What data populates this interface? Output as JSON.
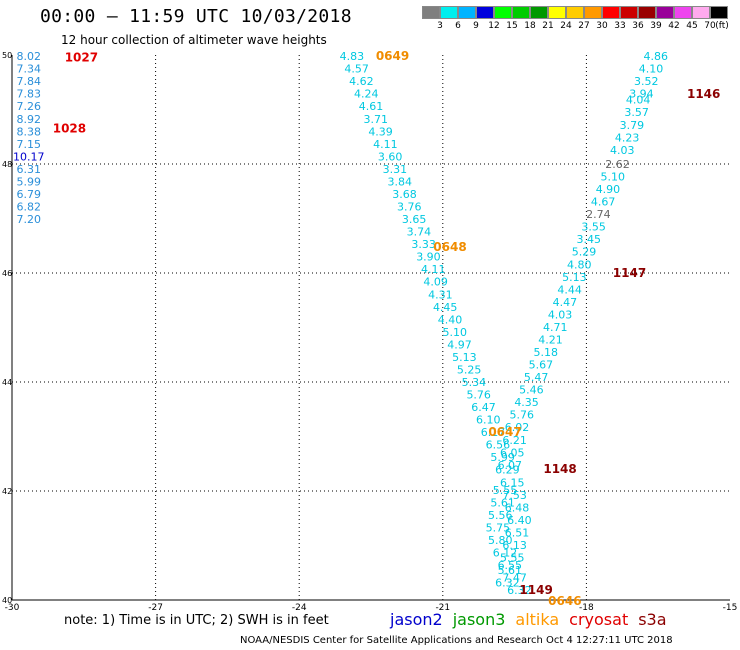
{
  "header": {
    "title": "00:00 – 11:59 UTC 10/03/2018",
    "subtitle": "12 hour collection of altimeter wave heights"
  },
  "colorbar": {
    "unit_label": "(ft)",
    "swatches": [
      {
        "color": "#7f7f7f",
        "label": "3"
      },
      {
        "color": "#00eeee",
        "label": "6"
      },
      {
        "color": "#00b4ff",
        "label": "9"
      },
      {
        "color": "#0000dd",
        "label": "12"
      },
      {
        "color": "#00ff00",
        "label": "15"
      },
      {
        "color": "#00cc00",
        "label": "18"
      },
      {
        "color": "#009900",
        "label": "21"
      },
      {
        "color": "#ffff00",
        "label": "24"
      },
      {
        "color": "#ffcc00",
        "label": "27"
      },
      {
        "color": "#ff9900",
        "label": "30"
      },
      {
        "color": "#ff0000",
        "label": "33"
      },
      {
        "color": "#cc0000",
        "label": "36"
      },
      {
        "color": "#990000",
        "label": "39"
      },
      {
        "color": "#990099",
        "label": "42"
      },
      {
        "color": "#ee44ee",
        "label": "45"
      },
      {
        "color": "#ffaaee",
        "label": "70"
      },
      {
        "color": "#000000",
        "label": ""
      }
    ]
  },
  "map": {
    "lon_range": [
      -30,
      -15
    ],
    "lat_range": [
      40,
      50
    ],
    "x_ticks": [
      "-30",
      "-27",
      "-24",
      "-21",
      "-18",
      "-15"
    ],
    "y_ticks": [
      "40",
      "42",
      "44",
      "46",
      "48",
      "50"
    ]
  },
  "chart_data": {
    "type": "scatter",
    "x_unit": "longitude (deg)",
    "y_unit": "latitude (deg)",
    "value_unit": "ft",
    "colors": {
      "cyan": "#00c8e0",
      "blue": "#2b8fd9",
      "darkblue": "#0000cc",
      "gray": "#666666",
      "red": "#e00000",
      "orange": "#f08c00",
      "darkred": "#8b0000"
    },
    "points": [
      {
        "x": -29.65,
        "y": 49.98,
        "v": "8.02",
        "c": "blue"
      },
      {
        "x": -29.65,
        "y": 49.75,
        "v": "7.34",
        "c": "blue"
      },
      {
        "x": -29.65,
        "y": 49.52,
        "v": "7.84",
        "c": "blue"
      },
      {
        "x": -29.65,
        "y": 49.29,
        "v": "7.83",
        "c": "blue"
      },
      {
        "x": -29.65,
        "y": 49.06,
        "v": "7.26",
        "c": "blue"
      },
      {
        "x": -29.65,
        "y": 48.83,
        "v": "8.92",
        "c": "blue"
      },
      {
        "x": -29.65,
        "y": 48.6,
        "v": "8.38",
        "c": "blue"
      },
      {
        "x": -29.65,
        "y": 48.37,
        "v": "7.15",
        "c": "blue"
      },
      {
        "x": -29.65,
        "y": 48.14,
        "v": "10.17",
        "c": "darkblue"
      },
      {
        "x": -29.65,
        "y": 47.91,
        "v": "6.31",
        "c": "blue"
      },
      {
        "x": -29.65,
        "y": 47.68,
        "v": "5.99",
        "c": "blue"
      },
      {
        "x": -29.65,
        "y": 47.45,
        "v": "6.79",
        "c": "blue"
      },
      {
        "x": -29.65,
        "y": 47.22,
        "v": "6.82",
        "c": "blue"
      },
      {
        "x": -29.65,
        "y": 46.99,
        "v": "7.20",
        "c": "blue"
      },
      {
        "x": -22.9,
        "y": 49.98,
        "v": "4.83",
        "c": "cyan"
      },
      {
        "x": -22.8,
        "y": 49.75,
        "v": "4.57",
        "c": "cyan"
      },
      {
        "x": -22.7,
        "y": 49.52,
        "v": "4.62",
        "c": "cyan"
      },
      {
        "x": -22.6,
        "y": 49.29,
        "v": "4.24",
        "c": "cyan"
      },
      {
        "x": -22.5,
        "y": 49.06,
        "v": "4.61",
        "c": "cyan"
      },
      {
        "x": -22.4,
        "y": 48.83,
        "v": "3.71",
        "c": "cyan"
      },
      {
        "x": -22.3,
        "y": 48.6,
        "v": "4.39",
        "c": "cyan"
      },
      {
        "x": -22.2,
        "y": 48.37,
        "v": "4.11",
        "c": "cyan"
      },
      {
        "x": -22.1,
        "y": 48.14,
        "v": "3.60",
        "c": "cyan"
      },
      {
        "x": -22.0,
        "y": 47.91,
        "v": "3.31",
        "c": "cyan"
      },
      {
        "x": -21.9,
        "y": 47.68,
        "v": "3.84",
        "c": "cyan"
      },
      {
        "x": -21.8,
        "y": 47.45,
        "v": "3.68",
        "c": "cyan"
      },
      {
        "x": -21.7,
        "y": 47.22,
        "v": "3.76",
        "c": "cyan"
      },
      {
        "x": -21.6,
        "y": 46.99,
        "v": "3.65",
        "c": "cyan"
      },
      {
        "x": -21.5,
        "y": 46.76,
        "v": "3.74",
        "c": "cyan"
      },
      {
        "x": -21.4,
        "y": 46.53,
        "v": "3.33",
        "c": "cyan"
      },
      {
        "x": -21.3,
        "y": 46.3,
        "v": "3.90",
        "c": "cyan"
      },
      {
        "x": -21.2,
        "y": 46.07,
        "v": "4.11",
        "c": "cyan"
      },
      {
        "x": -21.15,
        "y": 45.84,
        "v": "4.09",
        "c": "cyan"
      },
      {
        "x": -21.05,
        "y": 45.61,
        "v": "4.31",
        "c": "cyan"
      },
      {
        "x": -20.95,
        "y": 45.38,
        "v": "4.45",
        "c": "cyan"
      },
      {
        "x": -20.85,
        "y": 45.15,
        "v": "4.40",
        "c": "cyan"
      },
      {
        "x": -20.75,
        "y": 44.92,
        "v": "5.10",
        "c": "cyan"
      },
      {
        "x": -20.65,
        "y": 44.69,
        "v": "4.97",
        "c": "cyan"
      },
      {
        "x": -20.55,
        "y": 44.46,
        "v": "5.13",
        "c": "cyan"
      },
      {
        "x": -20.45,
        "y": 44.23,
        "v": "5.25",
        "c": "cyan"
      },
      {
        "x": -20.35,
        "y": 44.0,
        "v": "5.34",
        "c": "cyan"
      },
      {
        "x": -20.25,
        "y": 43.77,
        "v": "5.76",
        "c": "cyan"
      },
      {
        "x": -20.15,
        "y": 43.54,
        "v": "6.47",
        "c": "cyan"
      },
      {
        "x": -20.05,
        "y": 43.31,
        "v": "6.10",
        "c": "cyan"
      },
      {
        "x": -19.95,
        "y": 43.08,
        "v": "6.17",
        "c": "cyan"
      },
      {
        "x": -19.85,
        "y": 42.85,
        "v": "6.56",
        "c": "cyan"
      },
      {
        "x": -19.75,
        "y": 42.62,
        "v": "5.99",
        "c": "cyan"
      },
      {
        "x": -19.65,
        "y": 42.39,
        "v": "6.29",
        "c": "cyan"
      },
      {
        "x": -19.55,
        "y": 42.16,
        "v": "6.15",
        "c": "cyan"
      },
      {
        "x": -19.5,
        "y": 41.93,
        "v": "7.53",
        "c": "cyan"
      },
      {
        "x": -19.45,
        "y": 41.7,
        "v": "6.48",
        "c": "cyan"
      },
      {
        "x": -19.4,
        "y": 41.47,
        "v": "6.40",
        "c": "cyan"
      },
      {
        "x": -19.45,
        "y": 41.24,
        "v": "6.51",
        "c": "cyan"
      },
      {
        "x": -19.5,
        "y": 41.01,
        "v": "6.13",
        "c": "cyan"
      },
      {
        "x": -19.55,
        "y": 40.78,
        "v": "5.55",
        "c": "cyan"
      },
      {
        "x": -19.6,
        "y": 40.55,
        "v": "5.61",
        "c": "cyan"
      },
      {
        "x": -19.65,
        "y": 40.32,
        "v": "6.32",
        "c": "cyan"
      },
      {
        "x": -16.55,
        "y": 49.98,
        "v": "4.86",
        "c": "cyan"
      },
      {
        "x": -16.65,
        "y": 49.75,
        "v": "4.10",
        "c": "cyan"
      },
      {
        "x": -16.75,
        "y": 49.52,
        "v": "3.52",
        "c": "cyan"
      },
      {
        "x": -16.85,
        "y": 49.29,
        "v": "3.94",
        "c": "cyan"
      },
      {
        "x": -16.92,
        "y": 49.18,
        "v": "4.04",
        "c": "cyan"
      },
      {
        "x": -16.95,
        "y": 48.95,
        "v": "3.57",
        "c": "cyan"
      },
      {
        "x": -17.05,
        "y": 48.72,
        "v": "3.79",
        "c": "cyan"
      },
      {
        "x": -17.15,
        "y": 48.49,
        "v": "4.23",
        "c": "cyan"
      },
      {
        "x": -17.25,
        "y": 48.26,
        "v": "4.03",
        "c": "cyan"
      },
      {
        "x": -17.35,
        "y": 48.0,
        "v": "2.62",
        "c": "gray"
      },
      {
        "x": -17.45,
        "y": 47.77,
        "v": "5.10",
        "c": "cyan"
      },
      {
        "x": -17.55,
        "y": 47.54,
        "v": "4.90",
        "c": "cyan"
      },
      {
        "x": -17.65,
        "y": 47.31,
        "v": "4.67",
        "c": "cyan"
      },
      {
        "x": -17.75,
        "y": 47.08,
        "v": "2.74",
        "c": "gray"
      },
      {
        "x": -17.85,
        "y": 46.85,
        "v": "3.55",
        "c": "cyan"
      },
      {
        "x": -17.95,
        "y": 46.62,
        "v": "3.45",
        "c": "cyan"
      },
      {
        "x": -18.05,
        "y": 46.39,
        "v": "5.29",
        "c": "cyan"
      },
      {
        "x": -18.15,
        "y": 46.16,
        "v": "4.80",
        "c": "cyan"
      },
      {
        "x": -18.25,
        "y": 45.93,
        "v": "5.13",
        "c": "cyan"
      },
      {
        "x": -18.35,
        "y": 45.7,
        "v": "4.44",
        "c": "cyan"
      },
      {
        "x": -18.45,
        "y": 45.47,
        "v": "4.47",
        "c": "cyan"
      },
      {
        "x": -18.55,
        "y": 45.24,
        "v": "4.03",
        "c": "cyan"
      },
      {
        "x": -18.65,
        "y": 45.01,
        "v": "4.71",
        "c": "cyan"
      },
      {
        "x": -18.75,
        "y": 44.78,
        "v": "4.21",
        "c": "cyan"
      },
      {
        "x": -18.85,
        "y": 44.55,
        "v": "5.18",
        "c": "cyan"
      },
      {
        "x": -18.95,
        "y": 44.32,
        "v": "5.67",
        "c": "cyan"
      },
      {
        "x": -19.05,
        "y": 44.09,
        "v": "5.47",
        "c": "cyan"
      },
      {
        "x": -19.15,
        "y": 43.86,
        "v": "5.46",
        "c": "cyan"
      },
      {
        "x": -19.25,
        "y": 43.63,
        "v": "4.35",
        "c": "cyan"
      },
      {
        "x": -19.35,
        "y": 43.4,
        "v": "5.76",
        "c": "cyan"
      },
      {
        "x": -19.45,
        "y": 43.17,
        "v": "6.02",
        "c": "cyan"
      },
      {
        "x": -19.5,
        "y": 42.94,
        "v": "6.21",
        "c": "cyan"
      },
      {
        "x": -19.55,
        "y": 42.71,
        "v": "6.05",
        "c": "cyan"
      },
      {
        "x": -19.6,
        "y": 42.48,
        "v": "6.07",
        "c": "cyan"
      },
      {
        "x": -19.7,
        "y": 42.02,
        "v": "5.55",
        "c": "cyan"
      },
      {
        "x": -19.75,
        "y": 41.79,
        "v": "5.61",
        "c": "cyan"
      },
      {
        "x": -19.8,
        "y": 41.56,
        "v": "5.56",
        "c": "cyan"
      },
      {
        "x": -19.85,
        "y": 41.33,
        "v": "5.75",
        "c": "cyan"
      },
      {
        "x": -19.8,
        "y": 41.1,
        "v": "5.80",
        "c": "cyan"
      },
      {
        "x": -19.7,
        "y": 40.87,
        "v": "6.12",
        "c": "cyan"
      },
      {
        "x": -19.6,
        "y": 40.64,
        "v": "6.55",
        "c": "cyan"
      },
      {
        "x": -19.5,
        "y": 40.41,
        "v": "7.47",
        "c": "cyan"
      },
      {
        "x": -19.4,
        "y": 40.18,
        "v": "6.32",
        "c": "cyan"
      }
    ],
    "time_labels": [
      {
        "x": -28.55,
        "y": 49.95,
        "t": "1027",
        "c": "red"
      },
      {
        "x": -28.8,
        "y": 48.65,
        "t": "1028",
        "c": "red"
      },
      {
        "x": -22.05,
        "y": 49.98,
        "t": "0649",
        "c": "orange"
      },
      {
        "x": -20.85,
        "y": 46.48,
        "t": "0648",
        "c": "orange"
      },
      {
        "x": -19.7,
        "y": 43.08,
        "t": "0647",
        "c": "orange"
      },
      {
        "x": -18.45,
        "y": 39.98,
        "t": "0646",
        "c": "orange"
      },
      {
        "x": -15.55,
        "y": 49.28,
        "t": "1146",
        "c": "darkred"
      },
      {
        "x": -17.1,
        "y": 46.0,
        "t": "1147",
        "c": "darkred"
      },
      {
        "x": -18.55,
        "y": 42.4,
        "t": "1148",
        "c": "darkred"
      },
      {
        "x": -19.05,
        "y": 40.18,
        "t": "1149",
        "c": "darkred"
      }
    ]
  },
  "footer": {
    "note": "note: 1) Time is in UTC; 2) SWH is in feet",
    "legend": [
      {
        "label": "jason2",
        "color": "#0000cc"
      },
      {
        "label": "jason3",
        "color": "#009900"
      },
      {
        "label": "altika",
        "color": "#ff9900"
      },
      {
        "label": "cryosat",
        "color": "#e00000"
      },
      {
        "label": "s3a",
        "color": "#8b0000"
      }
    ],
    "credit": "NOAA/NESDIS Center for Satellite Applications and Research   Oct  4 12:27:11 UTC 2018"
  }
}
